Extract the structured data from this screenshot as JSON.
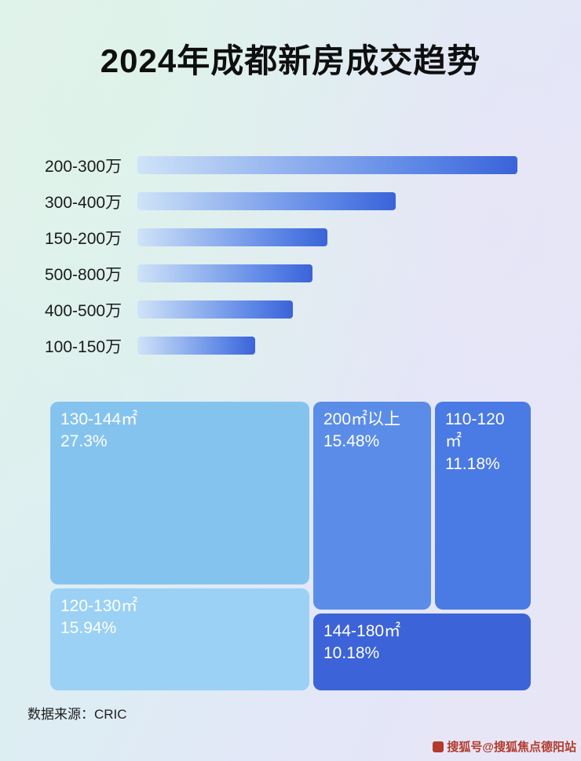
{
  "page": {
    "title": "2024年成都新房成交趋势",
    "source": "数据来源：CRIC",
    "watermark": "搜狐号@搜狐焦点德阳站"
  },
  "chart_data": [
    {
      "type": "bar",
      "orientation": "horizontal",
      "title": "2024年成都新房成交趋势",
      "categories": [
        "200-300万",
        "300-400万",
        "150-200万",
        "500-800万",
        "400-500万",
        "100-150万"
      ],
      "values": [
        100,
        68,
        50,
        46,
        41,
        31
      ],
      "value_note": "relative bar length, percent of longest bar (no numeric labels shown in image)",
      "bar_color_start": "#cfe3f8",
      "bar_color_mid": "#5b85e6",
      "bar_color_end": "#3a63d8",
      "grid": false,
      "legend": false
    },
    {
      "type": "treemap",
      "title": "",
      "blocks": [
        {
          "label": "130-144㎡",
          "value": "27.3%",
          "color": "#85c3ef"
        },
        {
          "label": "200㎡以上",
          "value": "15.48%",
          "color": "#5b8de8"
        },
        {
          "label": "110-120㎡",
          "value": "11.18%",
          "color": "#4a7ae4"
        },
        {
          "label": "120-130㎡",
          "value": "15.94%",
          "color": "#9bd1f4"
        },
        {
          "label": "144-180㎡",
          "value": "10.18%",
          "color": "#3c63d8"
        }
      ]
    }
  ]
}
